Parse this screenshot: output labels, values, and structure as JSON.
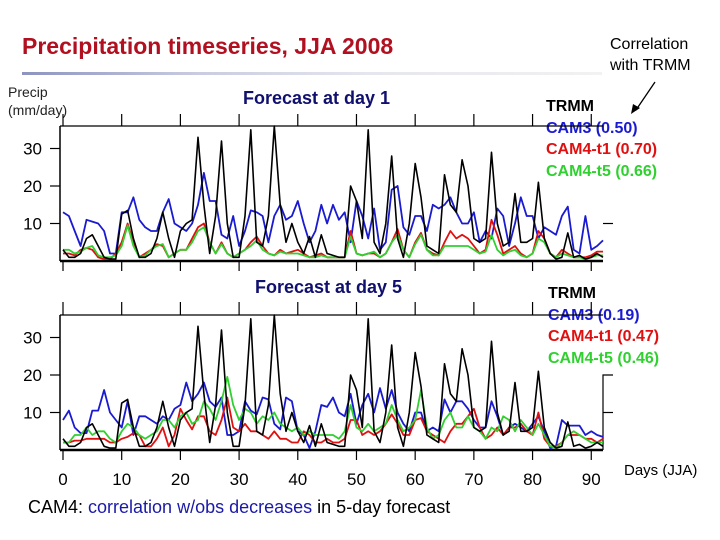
{
  "slide": {
    "title": "Precipitation timeseries, JJA 2008",
    "correlation_note_line1": "Correlation",
    "correlation_note_line2": "with TRMM",
    "bottom_prefix": "CAM4:",
    "bottom_highlight": "correlation w/obs decreases",
    "bottom_suffix": "in 5-day forecast"
  },
  "colors": {
    "title": "#b01020",
    "TRMM": "#000000",
    "CAM3": "#1a1ad0",
    "CAM4-t1": "#e01010",
    "CAM4-t5": "#30d030",
    "panel_title": "#10106e"
  },
  "chart_data": [
    {
      "type": "line",
      "title": "Forecast at day 1",
      "ylabel_line1": "Precip",
      "ylabel_line2": "(mm/day)",
      "xlabel": "Days (JJA)",
      "xlim": [
        0,
        92
      ],
      "ylim": [
        0,
        36
      ],
      "yticks": [
        10,
        20,
        30
      ],
      "xticks": [
        0,
        10,
        20,
        30,
        40,
        50,
        60,
        70,
        80,
        90
      ],
      "grid": false,
      "legend_placement": "right",
      "legend": [
        "TRMM",
        "CAM3 (0.50)",
        "CAM4-t1 (0.70)",
        "CAM4-t5 (0.66)"
      ],
      "series": [
        {
          "name": "TRMM",
          "values": [
            3,
            1,
            1,
            2,
            6,
            7,
            4,
            1,
            0.5,
            0.5,
            12.5,
            13.5,
            6,
            1,
            1,
            2,
            6,
            13,
            6,
            1,
            8,
            10,
            11,
            33,
            15,
            2,
            12,
            32,
            10,
            1,
            1,
            12,
            35,
            5,
            4,
            12,
            36,
            15,
            5,
            10,
            5,
            2,
            6.5,
            1,
            7,
            2,
            1.5,
            1,
            1,
            20,
            16,
            6,
            35,
            5,
            2,
            10,
            28,
            6,
            1,
            10,
            26,
            17,
            4,
            3,
            2,
            23,
            15,
            13,
            27,
            20,
            6,
            5,
            6,
            29,
            10,
            4,
            5,
            18,
            5,
            5,
            6,
            21,
            6,
            2,
            0.5,
            1,
            7.5,
            1,
            1.5,
            0.5,
            1,
            2,
            1
          ]
        },
        {
          "name": "CAM3 (0.50)",
          "values": [
            13,
            12,
            8,
            4,
            11,
            10.5,
            10,
            8,
            2,
            2,
            13,
            13,
            17,
            11,
            9,
            8,
            8,
            13,
            16.5,
            10,
            9,
            8,
            10,
            15,
            23.5,
            16,
            16,
            7,
            6,
            12,
            4,
            8,
            13.5,
            13,
            12,
            5,
            12,
            15,
            11,
            12,
            16,
            10,
            5,
            8,
            15,
            10,
            15,
            11,
            13,
            5,
            16,
            12,
            6,
            14,
            3,
            5,
            19,
            20,
            9,
            7,
            12,
            12,
            8,
            15,
            14,
            15,
            17,
            13,
            10,
            10,
            13,
            5,
            8,
            6,
            14,
            12,
            4,
            10,
            17,
            12,
            12,
            6,
            9,
            8,
            7,
            12,
            14.5,
            3,
            2,
            12,
            3,
            4,
            5.5
          ]
        },
        {
          "name": "CAM4-t1 (0.70)",
          "values": [
            2,
            2,
            1.5,
            3,
            3.5,
            3,
            1,
            0.5,
            0.5,
            2,
            5,
            10,
            5,
            1,
            2,
            3,
            4.5,
            4,
            1,
            2,
            3,
            3,
            6,
            9,
            10,
            5,
            2,
            5,
            2,
            1,
            2,
            3,
            5,
            6.5,
            4,
            2,
            1.5,
            3,
            2,
            2.5,
            3,
            2,
            1,
            1.5,
            2,
            1,
            1,
            1,
            1,
            8,
            2,
            1.5,
            2,
            2,
            1,
            2,
            5,
            8.5,
            3,
            1,
            5,
            7.5,
            3,
            2,
            1.5,
            5,
            8,
            6,
            7,
            6,
            4,
            2,
            3,
            11,
            7,
            2,
            3,
            4,
            2,
            1,
            2,
            8,
            6,
            2,
            1,
            3,
            2,
            1,
            1,
            1,
            1.5,
            2.5,
            2.5
          ]
        },
        {
          "name": "CAM4-t5 (0.66)",
          "values": [
            3,
            3,
            2,
            2.5,
            3.5,
            4,
            1.5,
            1,
            1,
            1.5,
            4,
            9.5,
            4,
            1,
            1.5,
            3,
            4,
            4.5,
            1,
            2,
            3,
            3,
            5,
            8,
            9,
            5,
            2,
            4.5,
            2,
            1,
            2,
            3,
            4,
            5.5,
            3,
            2,
            1.5,
            2.5,
            2,
            2,
            2,
            1.5,
            1,
            1,
            1.5,
            1,
            1,
            1,
            1,
            6.5,
            2,
            1.5,
            2,
            2.5,
            1,
            2,
            5,
            7,
            3,
            1,
            4.5,
            7,
            3,
            1.5,
            1.5,
            4,
            4,
            4,
            4,
            4,
            3,
            2,
            2.5,
            7,
            3,
            1.5,
            2.5,
            3,
            1.5,
            1,
            2,
            6,
            5,
            2,
            1,
            2,
            1.5,
            1,
            1,
            0.5,
            1,
            1.5,
            1.5
          ]
        }
      ]
    },
    {
      "type": "line",
      "title": "Forecast at day 5",
      "xlabel": "Days (JJA)",
      "xlim": [
        0,
        92
      ],
      "ylim": [
        0,
        36
      ],
      "yticks": [
        10,
        20,
        30
      ],
      "xticks": [
        0,
        10,
        20,
        30,
        40,
        50,
        60,
        70,
        80,
        90
      ],
      "grid": false,
      "legend_placement": "right",
      "legend": [
        "TRMM",
        "CAM3 (0.19)",
        "CAM4-t1 (0.47)",
        "CAM4-t5 (0.46)"
      ],
      "series": [
        {
          "name": "TRMM",
          "values": [
            3,
            1,
            1,
            2,
            6,
            7,
            4,
            1,
            0.5,
            0.5,
            12.5,
            13.5,
            6,
            1,
            1,
            2,
            6,
            13,
            6,
            1,
            8,
            10,
            11,
            33,
            15,
            2,
            12,
            32,
            10,
            1,
            1,
            12,
            35,
            5,
            4,
            12,
            36,
            15,
            5,
            10,
            5,
            2,
            6.5,
            1,
            7,
            2,
            1.5,
            1,
            1,
            20,
            16,
            6,
            35,
            5,
            2,
            10,
            28,
            6,
            1,
            10,
            26,
            17,
            4,
            3,
            2,
            23,
            15,
            13,
            27,
            20,
            6,
            5,
            6,
            29,
            10,
            4,
            5,
            18,
            5,
            5,
            6,
            21,
            6,
            2,
            0.5,
            1,
            7.5,
            1,
            1.5,
            0.5,
            1,
            2,
            1
          ]
        },
        {
          "name": "CAM3 (0.19)",
          "values": [
            8,
            10.5,
            6,
            4.5,
            4.5,
            10.5,
            10.5,
            16,
            10,
            8,
            6,
            13,
            4,
            9,
            9,
            8,
            7,
            9,
            8,
            11,
            12,
            18,
            13,
            15,
            18,
            13,
            11.5,
            14,
            4,
            4,
            5,
            13,
            10.5,
            9.5,
            14,
            13.5,
            7,
            5.5,
            14,
            13,
            5,
            4,
            0.5,
            5,
            12,
            11.5,
            14,
            10,
            9,
            15,
            7,
            12,
            15,
            10,
            16.5,
            11,
            16,
            10,
            7,
            5,
            10,
            10,
            5,
            6,
            5,
            13.5,
            10,
            13,
            13,
            11,
            8,
            6,
            6,
            13,
            9,
            4,
            6,
            7,
            6,
            5,
            7,
            9,
            5,
            0.5,
            1,
            8,
            6.5,
            6.5,
            6.5,
            4,
            5,
            4,
            3.5
          ]
        },
        {
          "name": "CAM4-t1 (0.47)",
          "values": [
            2,
            2,
            2.5,
            2.5,
            3,
            3,
            3,
            3,
            2,
            2,
            3,
            3.5,
            4.5,
            4,
            1,
            1,
            3,
            6,
            1,
            4,
            11,
            8,
            5.5,
            9,
            9,
            5,
            4,
            8,
            14,
            6,
            5,
            7,
            5,
            5,
            4,
            3,
            5,
            3,
            3,
            2,
            2,
            5,
            4,
            2,
            2,
            3,
            2,
            2,
            3,
            8,
            8,
            4,
            5,
            4,
            5,
            7,
            9.5,
            7,
            4,
            4,
            8,
            8.5,
            5,
            4,
            3,
            2,
            5,
            7,
            7,
            9,
            11,
            6,
            3,
            4,
            6,
            4,
            6,
            6,
            7,
            5,
            4,
            10,
            3,
            1,
            1,
            2,
            4,
            4,
            4,
            3,
            3,
            2,
            3
          ]
        },
        {
          "name": "CAM4-t5 (0.46)",
          "values": [
            2,
            2,
            4,
            4,
            6,
            4,
            5,
            5,
            3,
            2,
            5,
            7,
            6,
            4,
            3,
            4,
            5,
            8,
            8,
            6,
            9,
            10,
            7,
            8,
            13,
            11,
            8,
            13,
            19.5,
            12,
            8,
            11,
            10,
            7,
            9,
            8,
            10,
            7,
            6,
            5,
            6,
            4,
            5,
            4,
            4,
            4,
            4,
            3,
            5,
            12,
            6,
            5,
            7,
            5,
            6,
            7,
            12,
            8,
            5,
            6,
            8,
            16,
            6,
            3,
            4,
            8,
            10,
            6,
            6,
            9,
            6,
            5,
            3,
            6,
            5,
            9,
            8,
            5,
            8,
            6,
            4,
            7,
            4,
            1,
            0.5,
            2,
            4,
            5,
            4,
            3,
            2,
            2,
            2
          ]
        }
      ]
    }
  ]
}
